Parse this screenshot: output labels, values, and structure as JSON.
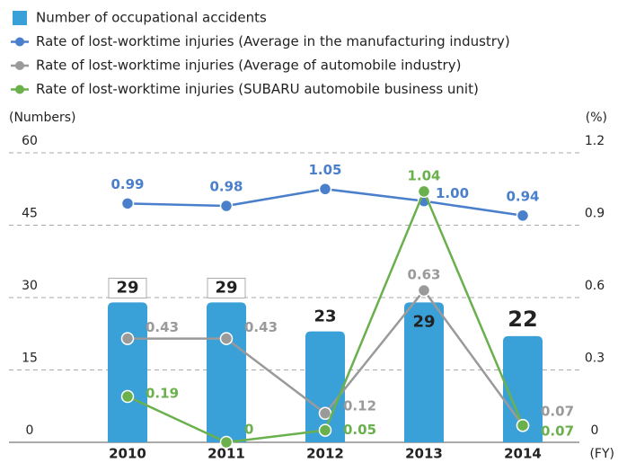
{
  "chart_data": {
    "type": "bar",
    "categories": [
      "2010",
      "2011",
      "2012",
      "2013",
      "2014"
    ],
    "ylabel": "(Numbers)",
    "y2label": "(%)",
    "xlabel": "(FY)",
    "ylim": [
      0,
      60
    ],
    "yticks": [
      0,
      15,
      30,
      45,
      60
    ],
    "y2lim": [
      0,
      1.2
    ],
    "y2ticks": [
      0,
      0.3,
      0.6,
      0.9,
      1.2
    ],
    "grid": true,
    "legend": "top-left",
    "series": [
      {
        "name": "Number of occupational accidents",
        "type": "bar",
        "color": "#3aa0d8",
        "values": [
          29,
          29,
          23,
          29,
          22
        ]
      },
      {
        "name": "Rate of lost-worktime injuries (Average in the manufacturing industry)",
        "type": "line",
        "axis": "y2",
        "color": "#4a7fcc",
        "values": [
          0.99,
          0.98,
          1.05,
          1.0,
          0.94
        ],
        "value_labels": [
          "0.99",
          "0.98",
          "1.05",
          "1.00",
          "0.94"
        ]
      },
      {
        "name": "Rate of lost-worktime injuries (Average of automobile industry)",
        "type": "line",
        "axis": "y2",
        "color": "#9a9a9a",
        "values": [
          0.43,
          0.43,
          0.12,
          0.63,
          0.07
        ]
      },
      {
        "name": "Rate of lost-worktime injuries (SUBARU automobile business unit)",
        "type": "line",
        "axis": "y2",
        "color": "#6ab04c",
        "values": [
          0.19,
          0,
          0.05,
          1.04,
          0.07
        ]
      }
    ]
  }
}
